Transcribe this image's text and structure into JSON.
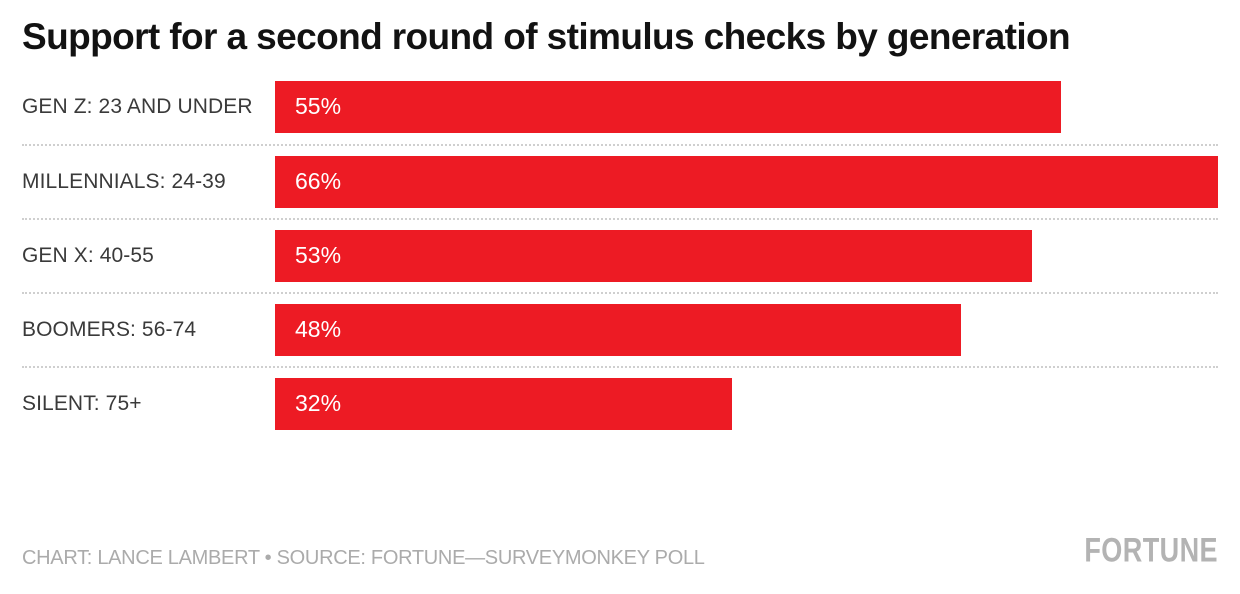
{
  "title": "Support for a second round of stimulus checks by generation",
  "chart_data": {
    "type": "bar",
    "orientation": "horizontal",
    "title": "Support for a second round of stimulus checks by generation",
    "categories": [
      "GEN Z: 23 AND UNDER",
      "MILLENNIALS: 24-39",
      "GEN X: 40-55",
      "BOOMERS: 56-74",
      "SILENT: 75+"
    ],
    "values": [
      55,
      66,
      53,
      48,
      32
    ],
    "value_labels": [
      "55%",
      "66%",
      "53%",
      "48%",
      "32%"
    ],
    "xlim": [
      0,
      66
    ],
    "bar_color": "#ED1B24",
    "grid": "dotted row separators",
    "legend": "none",
    "value_label_position": "inside-left"
  },
  "footer": {
    "credit": "CHART: LANCE LAMBERT • SOURCE: FORTUNE—SURVEYMONKEY POLL",
    "logo": "FORTUNE"
  },
  "colors": {
    "bar": "#ED1B24",
    "title_text": "#121212",
    "category_text": "#3a3a3a",
    "bar_value_text": "#ffffff",
    "credit_text": "#ababab",
    "logo_text": "#b3b3b3",
    "separator": "#cfcfcf",
    "background": "#ffffff"
  }
}
